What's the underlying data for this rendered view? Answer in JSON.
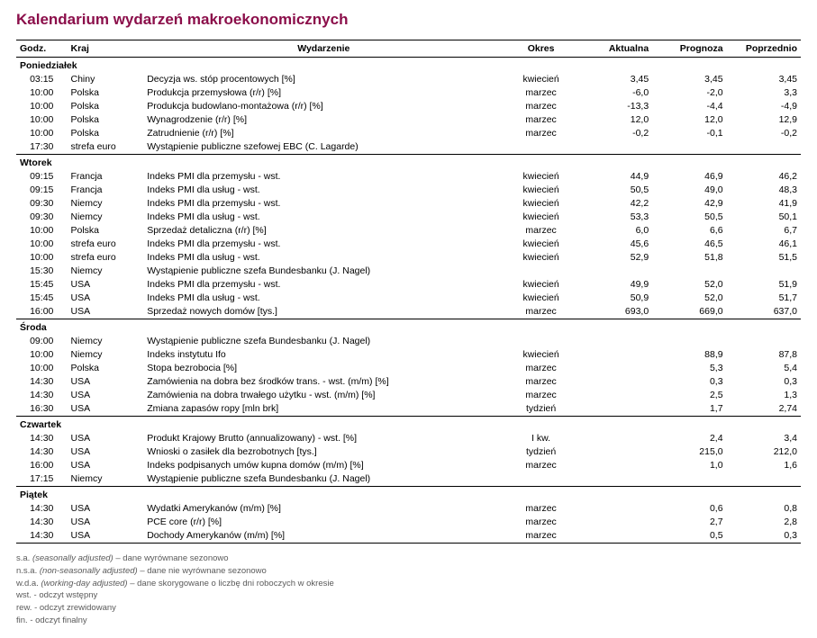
{
  "title": "Kalendarium wydarzeń makroekonomicznych",
  "colors": {
    "title": "#8b0e4a",
    "text": "#000000",
    "footnote": "#5a5a5a",
    "rule": "#000000",
    "background": "#ffffff"
  },
  "columns": {
    "godz": "Godz.",
    "kraj": "Kraj",
    "evt": "Wydarzenie",
    "okr": "Okres",
    "akt": "Aktualna",
    "prog": "Prognoza",
    "pop": "Poprzednio"
  },
  "days": [
    {
      "name": "Poniedziałek",
      "rows": [
        {
          "godz": "03:15",
          "kraj": "Chiny",
          "evt": "Decyzja ws. stóp procentowych [%]",
          "okr": "kwiecień",
          "akt": "3,45",
          "prog": "3,45",
          "pop": "3,45"
        },
        {
          "godz": "10:00",
          "kraj": "Polska",
          "evt": "Produkcja przemysłowa (r/r) [%]",
          "okr": "marzec",
          "akt": "-6,0",
          "prog": "-2,0",
          "pop": "3,3"
        },
        {
          "godz": "10:00",
          "kraj": "Polska",
          "evt": "Produkcja budowlano-montażowa (r/r) [%]",
          "okr": "marzec",
          "akt": "-13,3",
          "prog": "-4,4",
          "pop": "-4,9"
        },
        {
          "godz": "10:00",
          "kraj": "Polska",
          "evt": "Wynagrodzenie (r/r) [%]",
          "okr": "marzec",
          "akt": "12,0",
          "prog": "12,0",
          "pop": "12,9"
        },
        {
          "godz": "10:00",
          "kraj": "Polska",
          "evt": "Zatrudnienie (r/r) [%]",
          "okr": "marzec",
          "akt": "-0,2",
          "prog": "-0,1",
          "pop": "-0,2"
        },
        {
          "godz": "17:30",
          "kraj": "strefa euro",
          "evt": "Wystąpienie publiczne szefowej EBC (C. Lagarde)",
          "okr": "",
          "akt": "",
          "prog": "",
          "pop": ""
        }
      ]
    },
    {
      "name": "Wtorek",
      "rows": [
        {
          "godz": "09:15",
          "kraj": "Francja",
          "evt": "Indeks PMI dla przemysłu - wst.",
          "okr": "kwiecień",
          "akt": "44,9",
          "prog": "46,9",
          "pop": "46,2"
        },
        {
          "godz": "09:15",
          "kraj": "Francja",
          "evt": "Indeks PMI dla usług - wst.",
          "okr": "kwiecień",
          "akt": "50,5",
          "prog": "49,0",
          "pop": "48,3"
        },
        {
          "godz": "09:30",
          "kraj": "Niemcy",
          "evt": "Indeks PMI dla przemysłu - wst.",
          "okr": "kwiecień",
          "akt": "42,2",
          "prog": "42,9",
          "pop": "41,9"
        },
        {
          "godz": "09:30",
          "kraj": "Niemcy",
          "evt": "Indeks PMI dla usług - wst.",
          "okr": "kwiecień",
          "akt": "53,3",
          "prog": "50,5",
          "pop": "50,1"
        },
        {
          "godz": "10:00",
          "kraj": "Polska",
          "evt": "Sprzedaż detaliczna (r/r) [%]",
          "okr": "marzec",
          "akt": "6,0",
          "prog": "6,6",
          "pop": "6,7"
        },
        {
          "godz": "10:00",
          "kraj": "strefa euro",
          "evt": "Indeks PMI dla przemysłu - wst.",
          "okr": "kwiecień",
          "akt": "45,6",
          "prog": "46,5",
          "pop": "46,1"
        },
        {
          "godz": "10:00",
          "kraj": "strefa euro",
          "evt": "Indeks PMI dla usług - wst.",
          "okr": "kwiecień",
          "akt": "52,9",
          "prog": "51,8",
          "pop": "51,5"
        },
        {
          "godz": "15:30",
          "kraj": "Niemcy",
          "evt": "Wystąpienie publiczne szefa Bundesbanku (J. Nagel)",
          "okr": "",
          "akt": "",
          "prog": "",
          "pop": ""
        },
        {
          "godz": "15:45",
          "kraj": "USA",
          "evt": "Indeks PMI dla przemysłu - wst.",
          "okr": "kwiecień",
          "akt": "49,9",
          "prog": "52,0",
          "pop": "51,9"
        },
        {
          "godz": "15:45",
          "kraj": "USA",
          "evt": "Indeks PMI dla usług - wst.",
          "okr": "kwiecień",
          "akt": "50,9",
          "prog": "52,0",
          "pop": "51,7"
        },
        {
          "godz": "16:00",
          "kraj": "USA",
          "evt": "Sprzedaż nowych domów [tys.]",
          "okr": "marzec",
          "akt": "693,0",
          "prog": "669,0",
          "pop": "637,0"
        }
      ]
    },
    {
      "name": "Środa",
      "rows": [
        {
          "godz": "09:00",
          "kraj": "Niemcy",
          "evt": "Wystąpienie publiczne szefa Bundesbanku (J. Nagel)",
          "okr": "",
          "akt": "",
          "prog": "",
          "pop": ""
        },
        {
          "godz": "10:00",
          "kraj": "Niemcy",
          "evt": "Indeks instytutu Ifo",
          "okr": "kwiecień",
          "akt": "",
          "prog": "88,9",
          "pop": "87,8"
        },
        {
          "godz": "10:00",
          "kraj": "Polska",
          "evt": "Stopa bezrobocia [%]",
          "okr": "marzec",
          "akt": "",
          "prog": "5,3",
          "pop": "5,4"
        },
        {
          "godz": "14:30",
          "kraj": "USA",
          "evt": "Zamówienia na dobra bez środków trans. - wst. (m/m) [%]",
          "okr": "marzec",
          "akt": "",
          "prog": "0,3",
          "pop": "0,3"
        },
        {
          "godz": "14:30",
          "kraj": "USA",
          "evt": "Zamówienia na dobra trwałego użytku - wst. (m/m) [%]",
          "okr": "marzec",
          "akt": "",
          "prog": "2,5",
          "pop": "1,3"
        },
        {
          "godz": "16:30",
          "kraj": "USA",
          "evt": "Zmiana zapasów ropy [mln brk]",
          "okr": "tydzień",
          "akt": "",
          "prog": "1,7",
          "pop": "2,74"
        }
      ]
    },
    {
      "name": "Czwartek",
      "rows": [
        {
          "godz": "14:30",
          "kraj": "USA",
          "evt": "Produkt Krajowy Brutto (annualizowany) - wst. [%]",
          "okr": "I kw.",
          "akt": "",
          "prog": "2,4",
          "pop": "3,4"
        },
        {
          "godz": "14:30",
          "kraj": "USA",
          "evt": "Wnioski o zasiłek dla bezrobotnych [tys.]",
          "okr": "tydzień",
          "akt": "",
          "prog": "215,0",
          "pop": "212,0"
        },
        {
          "godz": "16:00",
          "kraj": "USA",
          "evt": "Indeks podpisanych umów kupna domów (m/m) [%]",
          "okr": "marzec",
          "akt": "",
          "prog": "1,0",
          "pop": "1,6"
        },
        {
          "godz": "17:15",
          "kraj": "Niemcy",
          "evt": "Wystąpienie publiczne szefa Bundesbanku (J. Nagel)",
          "okr": "",
          "akt": "",
          "prog": "",
          "pop": ""
        }
      ]
    },
    {
      "name": "Piątek",
      "rows": [
        {
          "godz": "14:30",
          "kraj": "USA",
          "evt": "Wydatki Amerykanów (m/m) [%]",
          "okr": "marzec",
          "akt": "",
          "prog": "0,6",
          "pop": "0,8"
        },
        {
          "godz": "14:30",
          "kraj": "USA",
          "evt": "PCE core (r/r) [%]",
          "okr": "marzec",
          "akt": "",
          "prog": "2,7",
          "pop": "2,8"
        },
        {
          "godz": "14:30",
          "kraj": "USA",
          "evt": "Dochody Amerykanów (m/m) [%]",
          "okr": "marzec",
          "akt": "",
          "prog": "0,5",
          "pop": "0,3"
        }
      ]
    }
  ],
  "footnotes": [
    {
      "abbr": "s.a.",
      "it": "(seasonally adjusted)",
      "rest": " – dane wyrównane sezonowo"
    },
    {
      "abbr": "n.s.a.",
      "it": "(non-seasonally adjusted)",
      "rest": " – dane nie wyrównane sezonowo"
    },
    {
      "abbr": "w.d.a.",
      "it": "(working-day adjusted)",
      "rest": " – dane skorygowane o liczbę dni roboczych w okresie"
    },
    {
      "abbr": "wst.",
      "it": "",
      "rest": " - odczyt wstępny"
    },
    {
      "abbr": "rew.",
      "it": "",
      "rest": " - odczyt zrewidowany"
    },
    {
      "abbr": "fin.",
      "it": "",
      "rest": " - odczyt finalny"
    }
  ]
}
